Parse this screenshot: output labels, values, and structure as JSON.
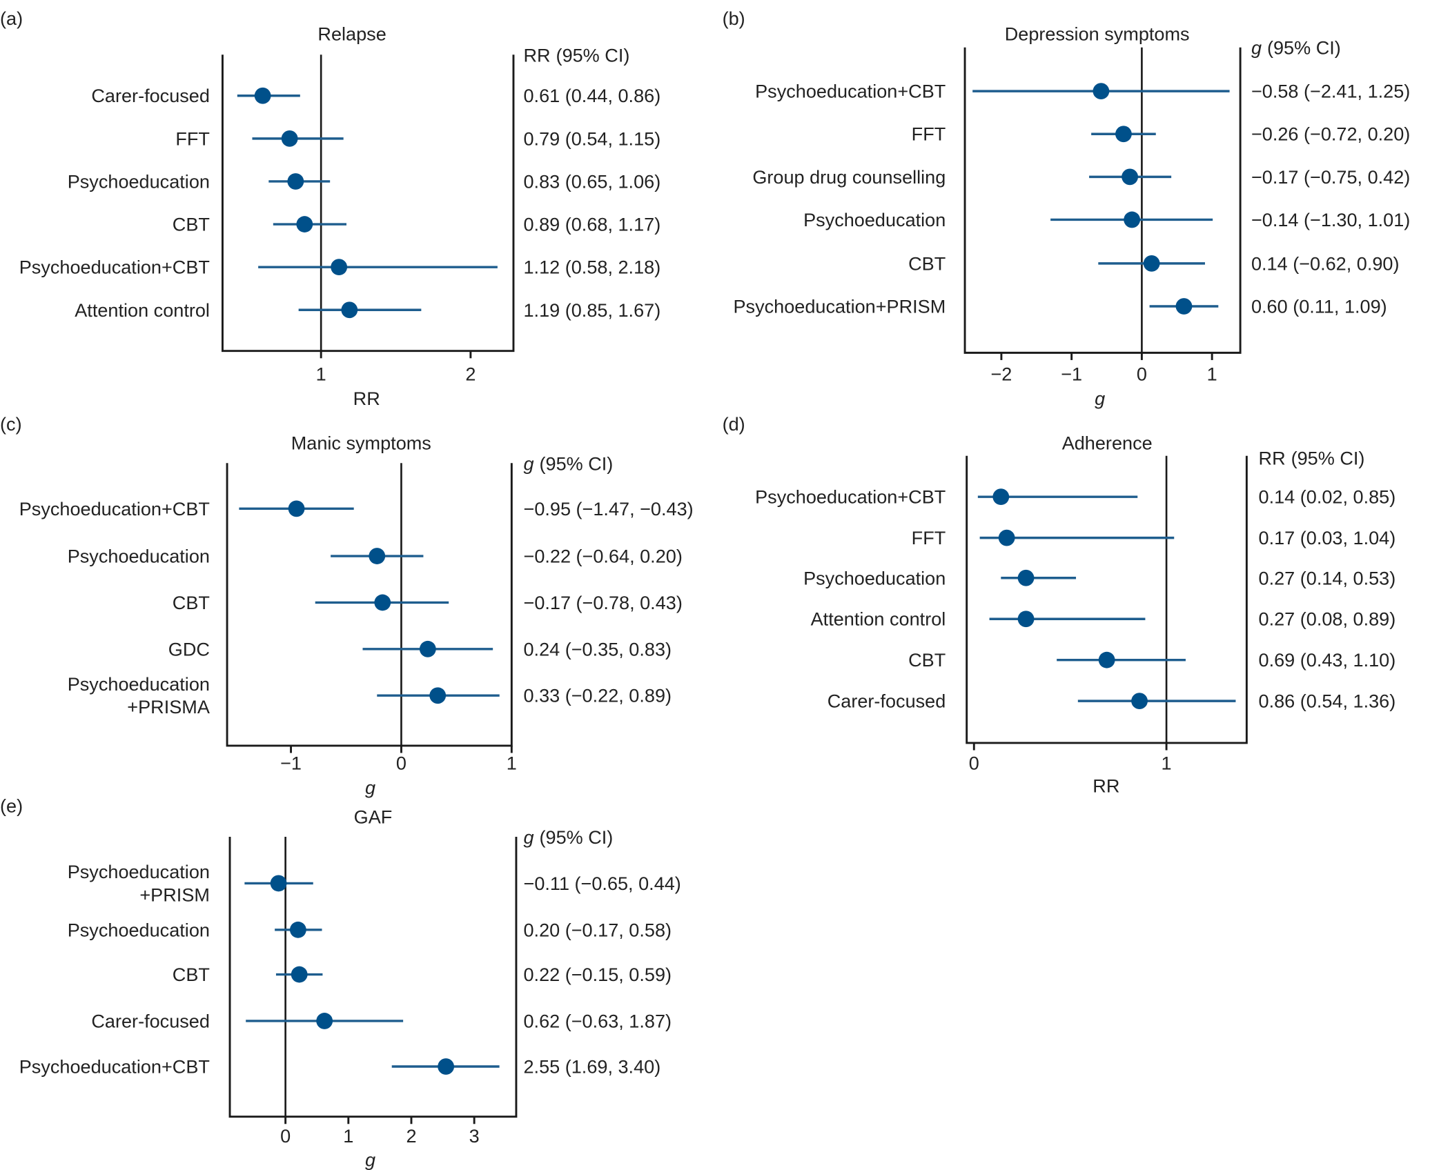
{
  "chart_data": [
    {
      "type": "forest",
      "panel": "(a)",
      "title": "Relapse",
      "header": {
        "symbol": "RR",
        "italic": false,
        "text": "(95% CI)"
      },
      "xlabel": {
        "symbol": "RR",
        "italic": false
      },
      "reference": 1,
      "xlim": [
        0.34,
        2.29
      ],
      "ticks": [
        1,
        2
      ],
      "tick_labels": [
        "1",
        "2"
      ],
      "rows": [
        {
          "label": "Carer-focused",
          "est": 0.61,
          "lo": 0.44,
          "hi": 0.86,
          "ci_text": "0.61 (0.44, 0.86)"
        },
        {
          "label": "FFT",
          "est": 0.79,
          "lo": 0.54,
          "hi": 1.15,
          "ci_text": "0.79 (0.54, 1.15)"
        },
        {
          "label": "Psychoeducation",
          "est": 0.83,
          "lo": 0.65,
          "hi": 1.06,
          "ci_text": "0.83 (0.65, 1.06)"
        },
        {
          "label": "CBT",
          "est": 0.89,
          "lo": 0.68,
          "hi": 1.17,
          "ci_text": "0.89 (0.68, 1.17)"
        },
        {
          "label": "Psychoeducation+CBT",
          "est": 1.12,
          "lo": 0.58,
          "hi": 2.18,
          "ci_text": "1.12 (0.58, 2.18)"
        },
        {
          "label": "Attention control",
          "est": 1.19,
          "lo": 0.85,
          "hi": 1.67,
          "ci_text": "1.19 (0.85, 1.67)"
        }
      ]
    },
    {
      "type": "forest",
      "panel": "(b)",
      "title": "Depression symptoms",
      "header": {
        "symbol": "g",
        "italic": true,
        "text": "(95% CI)"
      },
      "xlabel": {
        "symbol": "g",
        "italic": true
      },
      "reference": 0,
      "xlim": [
        -2.54,
        1.41
      ],
      "ticks": [
        -2,
        -1,
        0,
        1
      ],
      "tick_labels": [
        "−2",
        "−1",
        "0",
        "1"
      ],
      "rows": [
        {
          "label": "Psychoeducation+CBT",
          "est": -0.58,
          "lo": -2.41,
          "hi": 1.25,
          "ci_text": "−0.58 (−2.41, 1.25)"
        },
        {
          "label": "FFT",
          "est": -0.26,
          "lo": -0.72,
          "hi": 0.2,
          "ci_text": "−0.26 (−0.72, 0.20)"
        },
        {
          "label": "Group drug counselling",
          "est": -0.17,
          "lo": -0.75,
          "hi": 0.42,
          "ci_text": "−0.17 (−0.75, 0.42)"
        },
        {
          "label": "Psychoeducation",
          "est": -0.14,
          "lo": -1.3,
          "hi": 1.01,
          "ci_text": "−0.14 (−1.30, 1.01)"
        },
        {
          "label": "CBT",
          "est": 0.14,
          "lo": -0.62,
          "hi": 0.9,
          "ci_text": "0.14 (−0.62, 0.90)"
        },
        {
          "label": "Psychoeducation+PRISM",
          "est": 0.6,
          "lo": 0.11,
          "hi": 1.09,
          "ci_text": "0.60 (0.11, 1.09)"
        }
      ]
    },
    {
      "type": "forest",
      "panel": "(c)",
      "title": "Manic symptoms",
      "header": {
        "symbol": "g",
        "italic": true,
        "text": "(95% CI)"
      },
      "xlabel": {
        "symbol": "g",
        "italic": true
      },
      "reference": 0,
      "xlim": [
        -1.58,
        1.0
      ],
      "ticks": [
        -1,
        0,
        1
      ],
      "tick_labels": [
        "−1",
        "0",
        "1"
      ],
      "rows": [
        {
          "label": "Psychoeducation+CBT",
          "est": -0.95,
          "lo": -1.47,
          "hi": -0.43,
          "ci_text": "−0.95 (−1.47, −0.43)"
        },
        {
          "label": "Psychoeducation",
          "est": -0.22,
          "lo": -0.64,
          "hi": 0.2,
          "ci_text": "−0.22 (−0.64, 0.20)"
        },
        {
          "label": "CBT",
          "est": -0.17,
          "lo": -0.78,
          "hi": 0.43,
          "ci_text": "−0.17 (−0.78, 0.43)"
        },
        {
          "label": "GDC",
          "est": 0.24,
          "lo": -0.35,
          "hi": 0.83,
          "ci_text": "0.24 (−0.35, 0.83)"
        },
        {
          "label": "Psychoeducation\n+PRISMA",
          "est": 0.33,
          "lo": -0.22,
          "hi": 0.89,
          "ci_text": "0.33 (−0.22, 0.89)"
        }
      ]
    },
    {
      "type": "forest",
      "panel": "(d)",
      "title": "Adherence",
      "header": {
        "symbol": "RR",
        "italic": false,
        "text": "(95% CI)"
      },
      "xlabel": {
        "symbol": "RR",
        "italic": false
      },
      "reference": 1,
      "xlim": [
        -0.04,
        1.42
      ],
      "ticks": [
        0,
        1
      ],
      "tick_labels": [
        "0",
        "1"
      ],
      "rows": [
        {
          "label": "Psychoeducation+CBT",
          "est": 0.14,
          "lo": 0.02,
          "hi": 0.85,
          "ci_text": "0.14 (0.02, 0.85)"
        },
        {
          "label": "FFT",
          "est": 0.17,
          "lo": 0.03,
          "hi": 1.04,
          "ci_text": "0.17 (0.03, 1.04)"
        },
        {
          "label": "Psychoeducation",
          "est": 0.27,
          "lo": 0.14,
          "hi": 0.53,
          "ci_text": "0.27 (0.14, 0.53)"
        },
        {
          "label": "Attention control",
          "est": 0.27,
          "lo": 0.08,
          "hi": 0.89,
          "ci_text": "0.27 (0.08, 0.89)"
        },
        {
          "label": "CBT",
          "est": 0.69,
          "lo": 0.43,
          "hi": 1.1,
          "ci_text": "0.69 (0.43, 1.10)"
        },
        {
          "label": "Carer-focused",
          "est": 0.86,
          "lo": 0.54,
          "hi": 1.36,
          "ci_text": "0.86 (0.54, 1.36)"
        }
      ]
    },
    {
      "type": "forest",
      "panel": "(e)",
      "title": "GAF",
      "header": {
        "symbol": "g",
        "italic": true,
        "text": "(95% CI)"
      },
      "xlabel": {
        "symbol": "g",
        "italic": true
      },
      "reference": 0,
      "xlim": [
        -0.875,
        3.63
      ],
      "ticks": [
        0,
        1,
        2,
        3
      ],
      "tick_labels": [
        "0",
        "1",
        "2",
        "3"
      ],
      "rows": [
        {
          "label": "Psychoeducation\n+PRISM",
          "est": -0.11,
          "lo": -0.65,
          "hi": 0.44,
          "ci_text": "−0.11 (−0.65, 0.44)"
        },
        {
          "label": "Psychoeducation",
          "est": 0.2,
          "lo": -0.17,
          "hi": 0.58,
          "ci_text": "0.20 (−0.17, 0.58)"
        },
        {
          "label": "CBT",
          "est": 0.22,
          "lo": -0.15,
          "hi": 0.59,
          "ci_text": "0.22 (−0.15, 0.59)"
        },
        {
          "label": "Carer-focused",
          "est": 0.62,
          "lo": -0.63,
          "hi": 1.87,
          "ci_text": "0.62 (−0.63, 1.87)"
        },
        {
          "label": "Psychoeducation+CBT",
          "est": 2.55,
          "lo": 1.69,
          "hi": 3.4,
          "ci_text": "2.55 (1.69, 3.40)"
        }
      ]
    }
  ],
  "colors": {
    "marker": "#00508a",
    "ci_line": "#1e5d8e",
    "axis": "#1a1a1a"
  }
}
